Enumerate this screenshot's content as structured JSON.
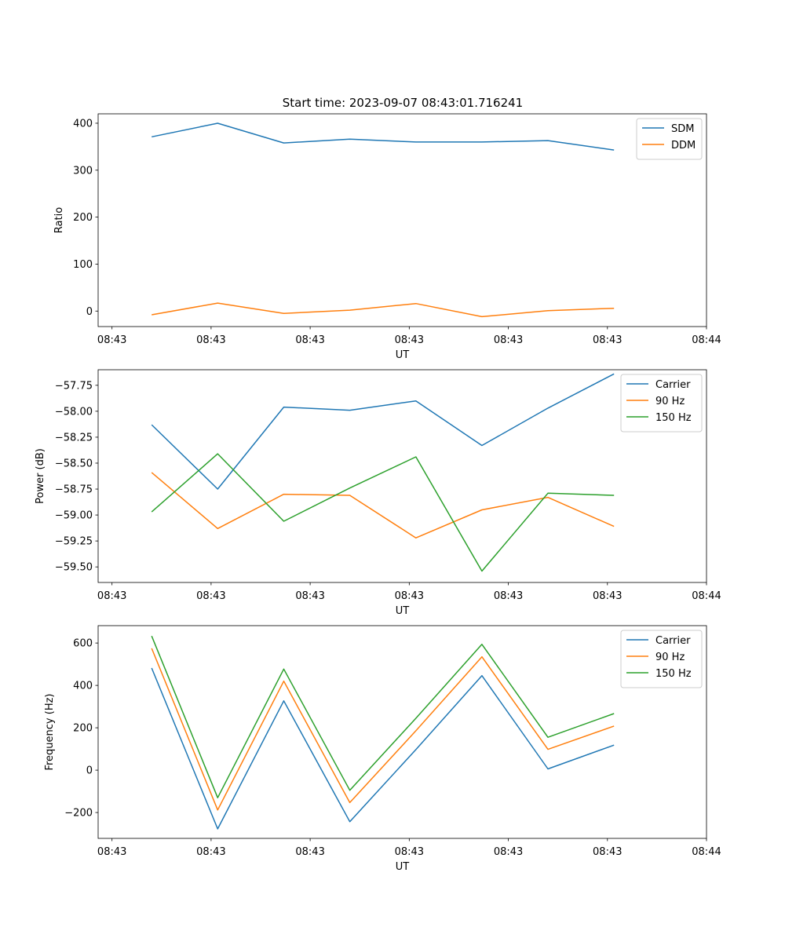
{
  "figure_title": "Start time: 2023-09-07 08:43:01.716241",
  "colors": {
    "blue": "#1f77b4",
    "orange": "#ff7f0e",
    "green": "#2ca02c"
  },
  "chart_data": [
    {
      "type": "line",
      "title": "Start time: 2023-09-07 08:43:01.716241",
      "xlabel": "UT",
      "ylabel": "Ratio",
      "x": [
        1,
        2,
        3,
        4,
        5,
        6,
        7,
        8
      ],
      "xlim": [
        0.19,
        9.4
      ],
      "ylim": [
        -33,
        420
      ],
      "x_ticks": [
        0.4,
        1.9,
        3.4,
        4.9,
        6.4,
        7.9,
        9.4
      ],
      "x_tick_labels": [
        "08:43",
        "08:43",
        "08:43",
        "08:43",
        "08:43",
        "08:43",
        "08:44"
      ],
      "y_ticks": [
        0,
        100,
        200,
        300,
        400
      ],
      "y_tick_labels": [
        "0",
        "100",
        "200",
        "300",
        "400"
      ],
      "legend_position": "top-right",
      "series": [
        {
          "name": "SDM",
          "color": "#1f77b4",
          "values": [
            371,
            400,
            358,
            366,
            360,
            360,
            363,
            343
          ]
        },
        {
          "name": "DDM",
          "color": "#ff7f0e",
          "values": [
            -8,
            17,
            -5,
            2,
            16,
            -12,
            1,
            6
          ]
        }
      ]
    },
    {
      "type": "line",
      "title": "",
      "xlabel": "UT",
      "ylabel": "Power (dB)",
      "x": [
        1,
        2,
        3,
        4,
        5,
        6,
        7,
        8
      ],
      "xlim": [
        0.19,
        9.4
      ],
      "ylim": [
        -59.65,
        -57.6
      ],
      "x_ticks": [
        0.4,
        1.9,
        3.4,
        4.9,
        6.4,
        7.9,
        9.4
      ],
      "x_tick_labels": [
        "08:43",
        "08:43",
        "08:43",
        "08:43",
        "08:43",
        "08:43",
        "08:44"
      ],
      "y_ticks": [
        -59.5,
        -59.25,
        -59.0,
        -58.75,
        -58.5,
        -58.25,
        -58.0,
        -57.75
      ],
      "y_tick_labels": [
        "−59.50",
        "−59.25",
        "−59.00",
        "−58.75",
        "−58.50",
        "−58.25",
        "−58.00",
        "−57.75"
      ],
      "legend_position": "top-right",
      "series": [
        {
          "name": "Carrier",
          "color": "#1f77b4",
          "values": [
            -58.13,
            -58.75,
            -57.96,
            -57.99,
            -57.9,
            -58.33,
            -57.97,
            -57.64
          ]
        },
        {
          "name": "90 Hz",
          "color": "#ff7f0e",
          "values": [
            -58.59,
            -59.13,
            -58.8,
            -58.81,
            -59.22,
            -58.95,
            -58.83,
            -59.11
          ]
        },
        {
          "name": "150 Hz",
          "color": "#2ca02c",
          "values": [
            -58.97,
            -58.41,
            -59.06,
            -58.74,
            -58.44,
            -59.54,
            -58.79,
            -58.81
          ]
        }
      ]
    },
    {
      "type": "line",
      "title": "",
      "xlabel": "UT",
      "ylabel": "Frequency (Hz)",
      "x": [
        1,
        2,
        3,
        4,
        5,
        6,
        7,
        8
      ],
      "xlim": [
        0.19,
        9.4
      ],
      "ylim": [
        -322,
        682
      ],
      "x_ticks": [
        0.4,
        1.9,
        3.4,
        4.9,
        6.4,
        7.9,
        9.4
      ],
      "x_tick_labels": [
        "08:43",
        "08:43",
        "08:43",
        "08:43",
        "08:43",
        "08:43",
        "08:44"
      ],
      "y_ticks": [
        -200,
        0,
        200,
        400,
        600
      ],
      "y_tick_labels": [
        "−200",
        "0",
        "200",
        "400",
        "600"
      ],
      "legend_position": "top-right",
      "series": [
        {
          "name": "Carrier",
          "color": "#1f77b4",
          "values": [
            482,
            -277,
            327,
            -243,
            97,
            446,
            6,
            118
          ]
        },
        {
          "name": "90 Hz",
          "color": "#ff7f0e",
          "values": [
            575,
            -188,
            420,
            -153,
            186,
            535,
            98,
            208
          ]
        },
        {
          "name": "150 Hz",
          "color": "#2ca02c",
          "values": [
            633,
            -130,
            477,
            -95,
            245,
            594,
            155,
            267
          ]
        }
      ]
    }
  ]
}
